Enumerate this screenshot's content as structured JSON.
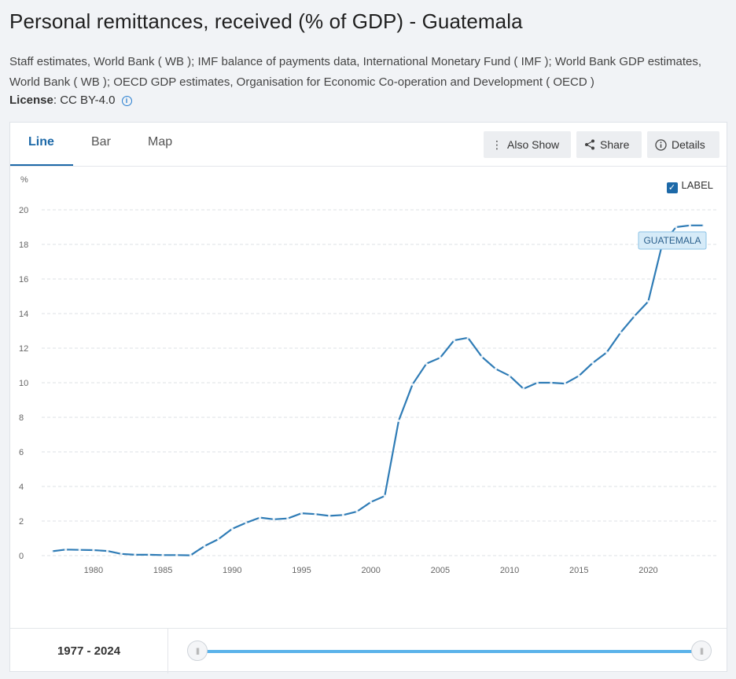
{
  "header": {
    "title": "Personal remittances, received (% of GDP) - Guatemala",
    "source": "Staff estimates, World Bank ( WB ); IMF balance of payments data, International Monetary Fund ( IMF ); World Bank GDP estimates, World Bank ( WB ); OECD GDP estimates, Organisation for Economic Co-operation and Development ( OECD )",
    "license_label": "License",
    "license_value": ": CC BY-4.0"
  },
  "tabs": {
    "line": "Line",
    "bar": "Bar",
    "map": "Map"
  },
  "toolbar": {
    "also_show": "Also Show",
    "share": "Share",
    "details": "Details"
  },
  "label_toggle": {
    "text": "LABEL",
    "checked": true
  },
  "range": {
    "start": "1977",
    "sep": " - ",
    "end": "2024"
  },
  "colors": {
    "line": "#2f7cb6",
    "accent": "#1d69a8",
    "slider": "#5bb3ea"
  },
  "chart_data": {
    "type": "line",
    "ylabel": "%",
    "ylim": [
      0,
      20
    ],
    "yticks": [
      0,
      2,
      4,
      6,
      8,
      10,
      12,
      14,
      16,
      18,
      20
    ],
    "xlim": [
      1977,
      2024
    ],
    "xticks": [
      1980,
      1985,
      1990,
      1995,
      2000,
      2005,
      2010,
      2015,
      2020
    ],
    "grid": true,
    "series": [
      {
        "name": "GUATEMALA",
        "x": [
          1977,
          1978,
          1979,
          1980,
          1981,
          1982,
          1983,
          1984,
          1985,
          1986,
          1987,
          1988,
          1989,
          1990,
          1991,
          1992,
          1993,
          1994,
          1995,
          1996,
          1997,
          1998,
          1999,
          2000,
          2001,
          2002,
          2003,
          2004,
          2005,
          2006,
          2007,
          2008,
          2009,
          2010,
          2011,
          2012,
          2013,
          2014,
          2015,
          2016,
          2017,
          2018,
          2019,
          2020,
          2021,
          2022,
          2023,
          2024
        ],
        "y": [
          0.25,
          0.35,
          0.33,
          0.32,
          0.27,
          0.1,
          0.05,
          0.05,
          0.03,
          0.03,
          0.02,
          0.55,
          0.95,
          1.55,
          1.9,
          2.2,
          2.1,
          2.15,
          2.45,
          2.4,
          2.3,
          2.35,
          2.55,
          3.1,
          3.45,
          7.8,
          9.9,
          11.1,
          11.45,
          12.45,
          12.6,
          11.5,
          10.8,
          10.4,
          9.65,
          10.0,
          10.0,
          9.95,
          10.4,
          11.15,
          11.75,
          12.9,
          13.85,
          14.7,
          18.0,
          19.0,
          19.1,
          19.1
        ]
      }
    ]
  }
}
